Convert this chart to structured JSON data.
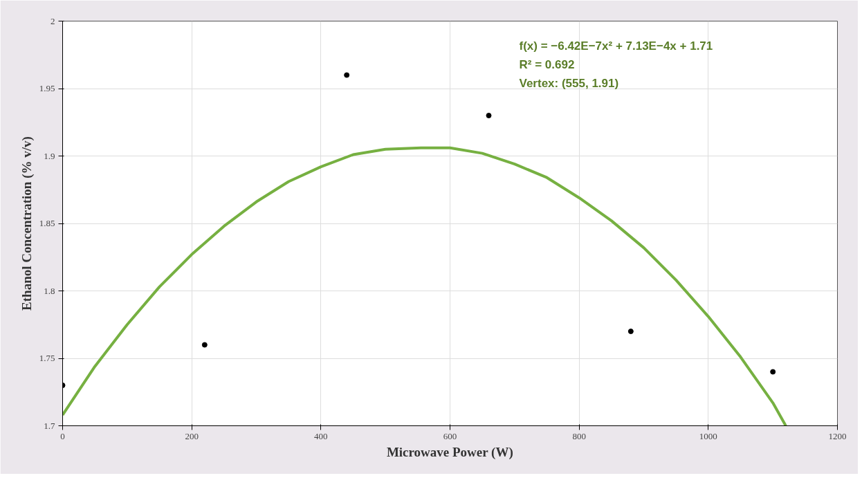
{
  "chart_data": {
    "type": "scatter",
    "xlabel": "Microwave Power (W)",
    "ylabel": "Ethanol Concentration (% v/v)",
    "x": [
      0,
      220,
      440,
      660,
      880,
      1100
    ],
    "series": [
      {
        "color": "#000000",
        "marker": "circle",
        "values": [
          1.73,
          1.76,
          1.96,
          1.93,
          1.77,
          1.74
        ]
      },
      {
        "type": "line",
        "color": "#76b041",
        "marker": "none",
        "line_style": "solid",
        "x": [
          0,
          50,
          100,
          150,
          200,
          250,
          300,
          350,
          400,
          450,
          500,
          555,
          600,
          650,
          700,
          750,
          800,
          850,
          900,
          950,
          1000,
          1050,
          1100,
          1120
        ],
        "values": [
          1.708,
          1.744,
          1.775,
          1.803,
          1.827,
          1.848,
          1.866,
          1.881,
          1.892,
          1.901,
          1.905,
          1.906,
          1.906,
          1.902,
          1.894,
          1.884,
          1.869,
          1.852,
          1.832,
          1.808,
          1.781,
          1.751,
          1.717,
          1.7
        ]
      }
    ],
    "xlim": [
      0,
      1200
    ],
    "xticks": [
      0,
      200,
      400,
      600,
      800,
      1000,
      1200
    ],
    "ylim": [
      1.7,
      2
    ],
    "yticks": [
      {
        "value": 1.7,
        "label": "1.7"
      },
      1.75,
      {
        "value": 1.8,
        "label": "1.8"
      },
      1.85,
      {
        "value": 1.9,
        "label": "1.9"
      },
      1.95,
      {
        "value": 2,
        "label": "2"
      }
    ],
    "grid": true,
    "annotations": [
      "f(x) = −6.42E−7x² + 7.13E−4x + 1.71",
      "R² = 0.692",
      "Vertex: (555, 1.91)"
    ]
  }
}
